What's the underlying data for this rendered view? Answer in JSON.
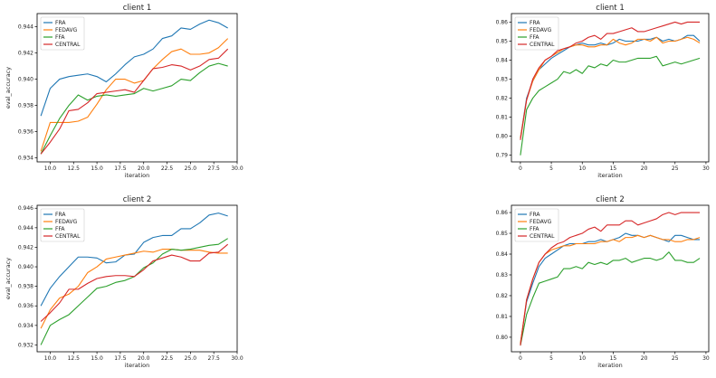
{
  "figure": {
    "colors": {
      "FRA": "#1f77b4",
      "FEDAVG": "#ff7f0e",
      "FFA": "#2ca02c",
      "CENTRAL": "#d62728"
    }
  },
  "chart_data": [
    {
      "type": "line",
      "title": "client 1",
      "xlabel": "iteration",
      "ylabel": "eval_accuracy",
      "xlim": [
        8.6,
        30.0
      ],
      "ylim": [
        0.9337,
        0.945
      ],
      "xticks": [
        "10.0",
        "12.5",
        "15.0",
        "17.5",
        "20.0",
        "22.5",
        "25.0",
        "27.5",
        "30.0"
      ],
      "yticks": [
        "0.934",
        "0.936",
        "0.938",
        "0.940",
        "0.942",
        "0.944"
      ],
      "xtick_values": [
        10,
        12.5,
        15,
        17.5,
        20,
        22.5,
        25,
        27.5,
        30
      ],
      "ytick_values": [
        0.934,
        0.936,
        0.938,
        0.94,
        0.942,
        0.944
      ],
      "grid": false,
      "legend": "top-left",
      "x": [
        9,
        10,
        11,
        12,
        13,
        14,
        15,
        16,
        17,
        18,
        19,
        20,
        21,
        22,
        23,
        24,
        25,
        26,
        27,
        28,
        29
      ],
      "series": [
        {
          "name": "FRA",
          "values": [
            0.9372,
            0.9393,
            0.94,
            0.9402,
            0.9403,
            0.9404,
            0.9402,
            0.9398,
            0.9404,
            0.9411,
            0.9417,
            0.9419,
            0.9423,
            0.9431,
            0.9433,
            0.9439,
            0.9438,
            0.9442,
            0.9445,
            0.9443,
            0.9439
          ]
        },
        {
          "name": "FEDAVG",
          "values": [
            0.9345,
            0.9367,
            0.9367,
            0.9367,
            0.9368,
            0.9371,
            0.9381,
            0.9392,
            0.94,
            0.94,
            0.9397,
            0.9399,
            0.9408,
            0.9415,
            0.9421,
            0.9423,
            0.9419,
            0.9419,
            0.942,
            0.9424,
            0.9431
          ]
        },
        {
          "name": "FFA",
          "values": [
            0.9343,
            0.9357,
            0.937,
            0.938,
            0.9388,
            0.9384,
            0.9387,
            0.9388,
            0.9387,
            0.9388,
            0.9389,
            0.9393,
            0.9391,
            0.9393,
            0.9395,
            0.94,
            0.9399,
            0.9405,
            0.941,
            0.9412,
            0.941
          ]
        },
        {
          "name": "CENTRAL",
          "values": [
            0.9343,
            0.9352,
            0.9362,
            0.9376,
            0.9377,
            0.9382,
            0.9389,
            0.939,
            0.9391,
            0.9392,
            0.939,
            0.9399,
            0.9408,
            0.9409,
            0.9411,
            0.941,
            0.9407,
            0.941,
            0.9415,
            0.9416,
            0.9423
          ]
        }
      ]
    },
    {
      "type": "line",
      "title": "client 1",
      "xlabel": "iteration",
      "ylabel": "",
      "xlim": [
        -1.45,
        30.45
      ],
      "ylim": [
        0.7865,
        0.8645
      ],
      "xticks": [
        "0",
        "5",
        "10",
        "15",
        "20",
        "25",
        "30"
      ],
      "yticks": [
        "0.79",
        "0.80",
        "0.81",
        "0.82",
        "0.83",
        "0.84",
        "0.85",
        "0.86"
      ],
      "xtick_values": [
        0,
        5,
        10,
        15,
        20,
        25,
        30
      ],
      "ytick_values": [
        0.79,
        0.8,
        0.81,
        0.82,
        0.83,
        0.84,
        0.85,
        0.86
      ],
      "grid": false,
      "legend": "top-left",
      "x": [
        0,
        1,
        2,
        3,
        4,
        5,
        6,
        7,
        8,
        9,
        10,
        11,
        12,
        13,
        14,
        15,
        16,
        17,
        18,
        19,
        20,
        21,
        22,
        23,
        24,
        25,
        26,
        27,
        28,
        29
      ],
      "series": [
        {
          "name": "FRA",
          "values": [
            0.799,
            0.82,
            0.829,
            0.835,
            0.838,
            0.841,
            0.843,
            0.845,
            0.847,
            0.848,
            0.849,
            0.848,
            0.848,
            0.849,
            0.848,
            0.849,
            0.851,
            0.85,
            0.85,
            0.85,
            0.851,
            0.851,
            0.852,
            0.85,
            0.851,
            0.85,
            0.851,
            0.853,
            0.853,
            0.85
          ]
        },
        {
          "name": "FEDAVG",
          "values": [
            0.799,
            0.819,
            0.829,
            0.835,
            0.84,
            0.842,
            0.844,
            0.846,
            0.847,
            0.848,
            0.848,
            0.847,
            0.847,
            0.848,
            0.848,
            0.851,
            0.849,
            0.848,
            0.849,
            0.851,
            0.851,
            0.85,
            0.852,
            0.849,
            0.85,
            0.85,
            0.851,
            0.852,
            0.851,
            0.849
          ]
        },
        {
          "name": "FFA",
          "values": [
            0.79,
            0.814,
            0.82,
            0.824,
            0.826,
            0.828,
            0.83,
            0.834,
            0.833,
            0.835,
            0.833,
            0.837,
            0.836,
            0.838,
            0.837,
            0.84,
            0.839,
            0.839,
            0.84,
            0.841,
            0.841,
            0.841,
            0.842,
            0.837,
            0.838,
            0.839,
            0.838,
            0.839,
            0.84,
            0.841
          ]
        },
        {
          "name": "CENTRAL",
          "values": [
            0.798,
            0.819,
            0.83,
            0.836,
            0.84,
            0.842,
            0.845,
            0.846,
            0.847,
            0.849,
            0.85,
            0.852,
            0.853,
            0.851,
            0.854,
            0.854,
            0.855,
            0.856,
            0.857,
            0.855,
            0.855,
            0.856,
            0.857,
            0.858,
            0.859,
            0.86,
            0.859,
            0.86,
            0.86,
            0.86
          ]
        }
      ]
    },
    {
      "type": "line",
      "title": "client 2",
      "xlabel": "iteration",
      "ylabel": "eval_accuracy",
      "xlim": [
        8.6,
        30.0
      ],
      "ylim": [
        0.9313,
        0.9463
      ],
      "xticks": [
        "10.0",
        "12.5",
        "15.0",
        "17.5",
        "20.0",
        "22.5",
        "25.0",
        "27.5",
        "30.0"
      ],
      "yticks": [
        "0.932",
        "0.934",
        "0.936",
        "0.938",
        "0.940",
        "0.942",
        "0.944",
        "0.946"
      ],
      "xtick_values": [
        10,
        12.5,
        15,
        17.5,
        20,
        22.5,
        25,
        27.5,
        30
      ],
      "ytick_values": [
        0.932,
        0.934,
        0.936,
        0.938,
        0.94,
        0.942,
        0.944,
        0.946
      ],
      "grid": false,
      "legend": "top-left",
      "x": [
        9,
        10,
        11,
        12,
        13,
        14,
        15,
        16,
        17,
        18,
        19,
        20,
        21,
        22,
        23,
        24,
        25,
        26,
        27,
        28,
        29
      ],
      "series": [
        {
          "name": "FRA",
          "values": [
            0.936,
            0.9378,
            0.939,
            0.94,
            0.941,
            0.941,
            0.9409,
            0.9404,
            0.9405,
            0.9412,
            0.9413,
            0.9425,
            0.943,
            0.9432,
            0.9432,
            0.9439,
            0.9439,
            0.9445,
            0.9453,
            0.9455,
            0.9452
          ]
        },
        {
          "name": "FEDAVG",
          "values": [
            0.9337,
            0.9356,
            0.9368,
            0.9372,
            0.938,
            0.9394,
            0.94,
            0.9408,
            0.941,
            0.9412,
            0.9414,
            0.9416,
            0.9415,
            0.9418,
            0.9418,
            0.9417,
            0.9417,
            0.9417,
            0.9415,
            0.9414,
            0.9414
          ]
        },
        {
          "name": "FFA",
          "values": [
            0.932,
            0.934,
            0.9346,
            0.9351,
            0.936,
            0.9369,
            0.9378,
            0.938,
            0.9384,
            0.9386,
            0.939,
            0.9399,
            0.9404,
            0.9413,
            0.9418,
            0.9417,
            0.9418,
            0.942,
            0.9422,
            0.9423,
            0.9429
          ]
        },
        {
          "name": "CENTRAL",
          "values": [
            0.9344,
            0.9353,
            0.9363,
            0.9377,
            0.9377,
            0.9383,
            0.9388,
            0.939,
            0.9391,
            0.9391,
            0.939,
            0.9397,
            0.9406,
            0.9409,
            0.9412,
            0.941,
            0.9406,
            0.9406,
            0.9414,
            0.9415,
            0.9423
          ]
        }
      ]
    },
    {
      "type": "line",
      "title": "client 2",
      "xlabel": "iteration",
      "ylabel": "",
      "xlim": [
        -1.45,
        30.45
      ],
      "ylim": [
        0.793,
        0.8635
      ],
      "xticks": [
        "0",
        "5",
        "10",
        "15",
        "20",
        "25",
        "30"
      ],
      "yticks": [
        "0.80",
        "0.81",
        "0.82",
        "0.83",
        "0.84",
        "0.85",
        "0.86"
      ],
      "xtick_values": [
        0,
        5,
        10,
        15,
        20,
        25,
        30
      ],
      "ytick_values": [
        0.8,
        0.81,
        0.82,
        0.83,
        0.84,
        0.85,
        0.86
      ],
      "grid": false,
      "legend": "top-left",
      "x": [
        0,
        1,
        2,
        3,
        4,
        5,
        6,
        7,
        8,
        9,
        10,
        11,
        12,
        13,
        14,
        15,
        16,
        17,
        18,
        19,
        20,
        21,
        22,
        23,
        24,
        25,
        26,
        27,
        28,
        29
      ],
      "series": [
        {
          "name": "FRA",
          "values": [
            0.797,
            0.817,
            0.826,
            0.834,
            0.838,
            0.84,
            0.842,
            0.844,
            0.845,
            0.845,
            0.845,
            0.846,
            0.846,
            0.847,
            0.846,
            0.847,
            0.848,
            0.85,
            0.849,
            0.849,
            0.848,
            0.849,
            0.848,
            0.847,
            0.846,
            0.849,
            0.849,
            0.848,
            0.847,
            0.847
          ]
        },
        {
          "name": "FEDAVG",
          "values": [
            0.797,
            0.818,
            0.828,
            0.836,
            0.84,
            0.842,
            0.843,
            0.844,
            0.844,
            0.845,
            0.845,
            0.845,
            0.845,
            0.846,
            0.846,
            0.847,
            0.846,
            0.848,
            0.848,
            0.849,
            0.848,
            0.849,
            0.848,
            0.847,
            0.847,
            0.846,
            0.846,
            0.847,
            0.847,
            0.848
          ]
        },
        {
          "name": "FFA",
          "values": [
            0.796,
            0.811,
            0.819,
            0.826,
            0.827,
            0.828,
            0.829,
            0.833,
            0.833,
            0.834,
            0.833,
            0.836,
            0.835,
            0.836,
            0.835,
            0.837,
            0.837,
            0.838,
            0.836,
            0.837,
            0.838,
            0.838,
            0.837,
            0.838,
            0.841,
            0.837,
            0.837,
            0.836,
            0.836,
            0.838
          ]
        },
        {
          "name": "CENTRAL",
          "values": [
            0.796,
            0.818,
            0.828,
            0.836,
            0.84,
            0.843,
            0.845,
            0.846,
            0.848,
            0.849,
            0.85,
            0.852,
            0.853,
            0.851,
            0.854,
            0.854,
            0.854,
            0.856,
            0.856,
            0.854,
            0.855,
            0.856,
            0.857,
            0.859,
            0.86,
            0.859,
            0.86,
            0.86,
            0.86,
            0.86
          ]
        }
      ]
    }
  ]
}
